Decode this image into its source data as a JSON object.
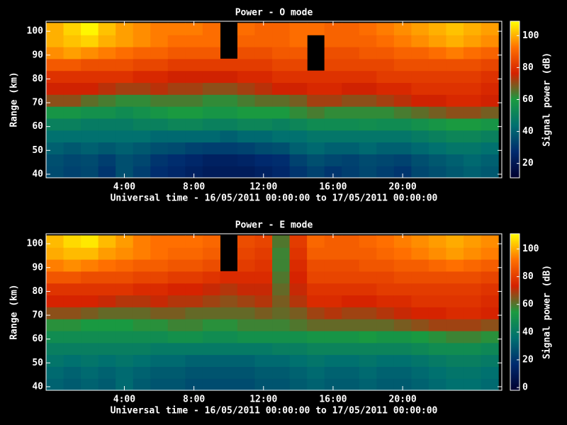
{
  "chart_data": [
    {
      "type": "heatmap",
      "title": "Power - O mode",
      "xlabel": "Universal time - 16/05/2011 00:00:00 to 17/05/2011 00:00:00",
      "ylabel": "Range (km)",
      "colorbar_label": "Signal power (dB)",
      "colormap": [
        "#000030",
        "#002a6e",
        "#007070",
        "#1a9a40",
        "#d42000",
        "#ff7000",
        "#ffff00"
      ],
      "xlim": [
        -0.5,
        25.7
      ],
      "ylim": [
        38.5,
        104.2
      ],
      "zlim": [
        11,
        109
      ],
      "xticks": [
        {
          "value": 4,
          "label": "4:00"
        },
        {
          "value": 8,
          "label": "8:00"
        },
        {
          "value": 12,
          "label": "12:00"
        },
        {
          "value": 16,
          "label": "16:00"
        },
        {
          "value": 20,
          "label": "20:00"
        }
      ],
      "yticks": [
        40,
        50,
        60,
        70,
        80,
        90,
        100
      ],
      "zticks": [
        20,
        40,
        60,
        80,
        100
      ],
      "x": [
        0,
        1,
        2,
        3,
        4,
        5,
        6,
        7,
        8,
        9,
        10,
        11,
        12,
        13,
        14,
        15,
        16,
        17,
        18,
        19,
        20,
        21,
        22,
        23,
        24,
        25
      ],
      "y": [
        41,
        46,
        51,
        56,
        61,
        66,
        71,
        76,
        81,
        86,
        91,
        96,
        101
      ],
      "values": [
        [
          35,
          33,
          34,
          30,
          36,
          32,
          28,
          26,
          24,
          22,
          22,
          22,
          24,
          26,
          30,
          33,
          30,
          32,
          34,
          32,
          30,
          34,
          36,
          38,
          40,
          38
        ],
        [
          36,
          34,
          35,
          32,
          36,
          34,
          30,
          28,
          26,
          24,
          24,
          25,
          27,
          28,
          33,
          36,
          34,
          33,
          35,
          34,
          33,
          36,
          38,
          40,
          42,
          40
        ],
        [
          40,
          38,
          40,
          38,
          40,
          38,
          36,
          35,
          33,
          32,
          32,
          33,
          35,
          36,
          40,
          42,
          40,
          40,
          42,
          40,
          40,
          42,
          44,
          46,
          46,
          44
        ],
        [
          44,
          44,
          44,
          44,
          44,
          44,
          42,
          42,
          42,
          42,
          40,
          42,
          42,
          44,
          44,
          46,
          46,
          46,
          46,
          46,
          46,
          48,
          50,
          52,
          52,
          50
        ],
        [
          50,
          50,
          48,
          48,
          48,
          50,
          50,
          52,
          52,
          50,
          50,
          52,
          52,
          50,
          52,
          54,
          54,
          54,
          55,
          54,
          54,
          56,
          58,
          60,
          60,
          58
        ],
        [
          58,
          58,
          56,
          56,
          54,
          56,
          58,
          60,
          60,
          58,
          58,
          60,
          60,
          60,
          62,
          64,
          62,
          62,
          62,
          62,
          64,
          66,
          68,
          70,
          70,
          68
        ],
        [
          70,
          70,
          66,
          64,
          62,
          62,
          64,
          64,
          64,
          62,
          62,
          64,
          66,
          66,
          68,
          72,
          72,
          70,
          70,
          72,
          74,
          76,
          76,
          78,
          78,
          76
        ],
        [
          76,
          76,
          76,
          74,
          72,
          72,
          74,
          72,
          72,
          70,
          70,
          72,
          74,
          76,
          76,
          78,
          78,
          76,
          76,
          78,
          78,
          80,
          80,
          80,
          80,
          78
        ],
        [
          80,
          80,
          80,
          80,
          80,
          78,
          78,
          76,
          76,
          76,
          76,
          78,
          78,
          80,
          80,
          80,
          80,
          80,
          80,
          82,
          82,
          82,
          82,
          82,
          82,
          80
        ],
        [
          88,
          88,
          86,
          86,
          86,
          84,
          84,
          82,
          82,
          82,
          82,
          82,
          82,
          84,
          84,
          null,
          84,
          84,
          84,
          84,
          86,
          86,
          86,
          86,
          86,
          84
        ],
        [
          96,
          98,
          96,
          94,
          92,
          90,
          90,
          88,
          88,
          88,
          null,
          86,
          86,
          88,
          88,
          null,
          86,
          86,
          88,
          88,
          90,
          90,
          92,
          94,
          92,
          90
        ],
        [
          100,
          102,
          104,
          100,
          98,
          96,
          94,
          92,
          92,
          92,
          null,
          90,
          90,
          90,
          92,
          null,
          90,
          90,
          90,
          92,
          94,
          96,
          98,
          100,
          98,
          96
        ],
        [
          100,
          104,
          108,
          102,
          98,
          96,
          94,
          94,
          94,
          92,
          null,
          92,
          90,
          90,
          92,
          92,
          90,
          90,
          92,
          94,
          96,
          98,
          100,
          102,
          100,
          98
        ]
      ]
    },
    {
      "type": "heatmap",
      "title": "Power - E mode",
      "xlabel": "Universal time - 16/05/2011 00:00:00 to 17/05/2011 00:00:00",
      "ylabel": "Range (km)",
      "colorbar_label": "Signal power (dB)",
      "colormap": [
        "#000030",
        "#002a6e",
        "#007070",
        "#1a9a40",
        "#d42000",
        "#ff7000",
        "#ffff00"
      ],
      "xlim": [
        -0.5,
        25.7
      ],
      "ylim": [
        38.5,
        104.2
      ],
      "zlim": [
        -2,
        111
      ],
      "xticks": [
        {
          "value": 4,
          "label": "4:00"
        },
        {
          "value": 8,
          "label": "8:00"
        },
        {
          "value": 12,
          "label": "12:00"
        },
        {
          "value": 16,
          "label": "16:00"
        },
        {
          "value": 20,
          "label": "20:00"
        }
      ],
      "yticks": [
        40,
        50,
        60,
        70,
        80,
        90,
        100
      ],
      "zticks": [
        0,
        20,
        40,
        60,
        80,
        100
      ],
      "x": [
        0,
        1,
        2,
        3,
        4,
        5,
        6,
        7,
        8,
        9,
        10,
        11,
        12,
        13,
        14,
        15,
        16,
        17,
        18,
        19,
        20,
        21,
        22,
        23,
        24,
        25
      ],
      "y": [
        41,
        46,
        51,
        56,
        61,
        66,
        71,
        76,
        81,
        86,
        91,
        96,
        101
      ],
      "values": [
        [
          32,
          30,
          32,
          30,
          34,
          30,
          28,
          28,
          26,
          26,
          26,
          26,
          28,
          28,
          30,
          32,
          30,
          30,
          32,
          30,
          30,
          32,
          34,
          36,
          36,
          34
        ],
        [
          34,
          32,
          34,
          32,
          34,
          32,
          30,
          30,
          28,
          28,
          28,
          28,
          30,
          30,
          32,
          34,
          32,
          32,
          34,
          32,
          32,
          34,
          36,
          38,
          38,
          36
        ],
        [
          38,
          36,
          38,
          36,
          38,
          36,
          34,
          34,
          32,
          32,
          32,
          32,
          34,
          34,
          36,
          38,
          36,
          36,
          38,
          36,
          36,
          38,
          40,
          42,
          42,
          40
        ],
        [
          42,
          42,
          42,
          42,
          42,
          42,
          40,
          40,
          40,
          40,
          40,
          40,
          40,
          42,
          42,
          44,
          44,
          44,
          44,
          44,
          44,
          46,
          48,
          48,
          48,
          46
        ],
        [
          48,
          48,
          48,
          48,
          48,
          48,
          48,
          50,
          50,
          48,
          48,
          50,
          50,
          50,
          50,
          52,
          52,
          52,
          54,
          52,
          52,
          54,
          56,
          58,
          58,
          56
        ],
        [
          56,
          56,
          54,
          54,
          54,
          56,
          56,
          58,
          58,
          56,
          56,
          58,
          58,
          58,
          60,
          62,
          62,
          62,
          62,
          62,
          64,
          66,
          68,
          68,
          68,
          66
        ],
        [
          66,
          66,
          64,
          62,
          62,
          62,
          64,
          64,
          62,
          62,
          62,
          62,
          64,
          62,
          64,
          68,
          70,
          68,
          68,
          70,
          72,
          74,
          74,
          76,
          76,
          74
        ],
        [
          74,
          74,
          74,
          72,
          70,
          70,
          72,
          70,
          70,
          68,
          66,
          68,
          70,
          64,
          70,
          76,
          76,
          74,
          74,
          76,
          76,
          78,
          78,
          78,
          78,
          76
        ],
        [
          78,
          78,
          78,
          78,
          78,
          76,
          76,
          74,
          74,
          72,
          70,
          72,
          72,
          62,
          72,
          78,
          78,
          78,
          78,
          80,
          80,
          80,
          80,
          80,
          80,
          78
        ],
        [
          86,
          86,
          84,
          84,
          84,
          82,
          82,
          80,
          80,
          78,
          76,
          76,
          76,
          60,
          74,
          82,
          82,
          82,
          82,
          82,
          84,
          84,
          84,
          84,
          84,
          82
        ],
        [
          94,
          96,
          94,
          92,
          90,
          88,
          88,
          86,
          86,
          84,
          null,
          80,
          78,
          58,
          76,
          84,
          84,
          84,
          86,
          86,
          88,
          88,
          90,
          92,
          90,
          88
        ],
        [
          100,
          102,
          102,
          98,
          96,
          94,
          92,
          90,
          90,
          88,
          null,
          82,
          80,
          58,
          78,
          88,
          88,
          88,
          88,
          90,
          92,
          94,
          96,
          98,
          96,
          94
        ],
        [
          102,
          106,
          108,
          102,
          98,
          94,
          92,
          92,
          92,
          90,
          null,
          84,
          82,
          60,
          80,
          90,
          88,
          88,
          90,
          92,
          94,
          96,
          98,
          100,
          98,
          96
        ]
      ]
    }
  ]
}
